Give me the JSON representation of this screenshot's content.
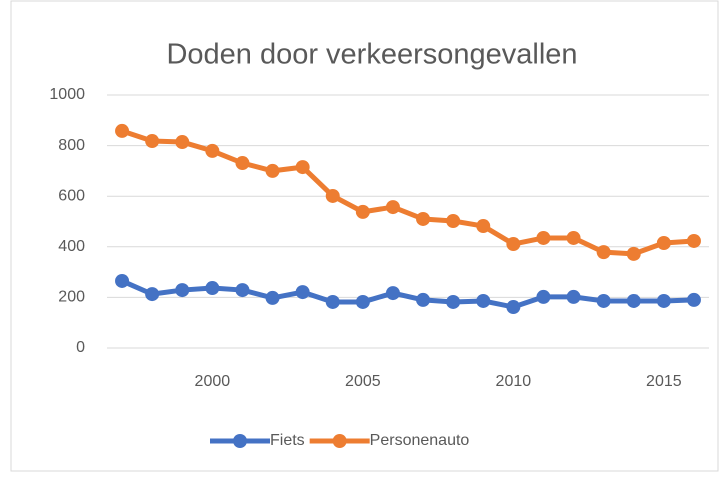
{
  "chart_data": {
    "type": "line",
    "title": "Doden door verkeersongevallen",
    "x": [
      1997,
      1998,
      1999,
      2000,
      2001,
      2002,
      2003,
      2004,
      2005,
      2006,
      2007,
      2008,
      2009,
      2010,
      2011,
      2012,
      2013,
      2014,
      2015,
      2016
    ],
    "series": [
      {
        "name": "Fiets",
        "color": "#4472c4",
        "values": [
          265,
          213,
          229,
          237,
          229,
          198,
          221,
          182,
          182,
          217,
          190,
          182,
          186,
          162,
          202,
          202,
          186,
          186,
          186,
          190
        ]
      },
      {
        "name": "Personenauto",
        "color": "#ed7d31",
        "values": [
          858,
          818,
          814,
          779,
          731,
          700,
          715,
          601,
          538,
          557,
          510,
          502,
          482,
          411,
          435,
          435,
          379,
          372,
          415,
          423
        ]
      }
    ],
    "xlim": [
      1996.5,
      2016.5
    ],
    "xticks": [
      2000,
      2005,
      2010,
      2015
    ],
    "ylim": [
      0,
      1000
    ],
    "yticks": [
      0,
      200,
      400,
      600,
      800,
      1000
    ],
    "grid": true,
    "legend": "bottom"
  }
}
